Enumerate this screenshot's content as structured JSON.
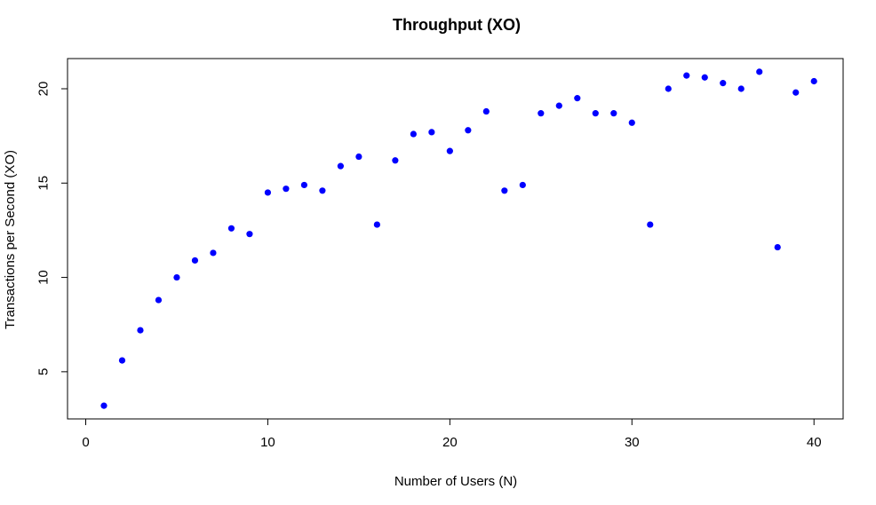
{
  "chart_data": {
    "type": "scatter",
    "title": "Throughput (XO)",
    "xlabel": "Number of Users (N)",
    "ylabel": "Transactions per Second (XO)",
    "xlim": [
      -1,
      41.6
    ],
    "ylim": [
      2.5,
      21.6
    ],
    "xticks": [
      0,
      10,
      20,
      30,
      40
    ],
    "yticks": [
      5,
      10,
      15,
      20
    ],
    "grid": false,
    "marker_color": "#0000ff",
    "x": [
      1,
      2,
      3,
      4,
      5,
      6,
      7,
      8,
      9,
      10,
      11,
      12,
      13,
      14,
      15,
      16,
      17,
      18,
      19,
      20,
      21,
      22,
      23,
      24,
      25,
      26,
      27,
      28,
      29,
      30,
      31,
      32,
      33,
      34,
      35,
      36,
      37,
      38,
      39,
      40
    ],
    "y": [
      3.2,
      5.6,
      7.2,
      8.8,
      10.0,
      10.9,
      11.3,
      12.6,
      12.3,
      14.5,
      14.7,
      14.9,
      14.6,
      15.9,
      16.4,
      12.8,
      16.2,
      17.6,
      17.7,
      16.7,
      17.8,
      18.8,
      14.6,
      14.9,
      18.7,
      19.1,
      19.5,
      18.7,
      18.7,
      18.2,
      12.8,
      20.0,
      20.7,
      20.6,
      20.3,
      20.0,
      20.9,
      11.6,
      19.8,
      20.4
    ]
  }
}
